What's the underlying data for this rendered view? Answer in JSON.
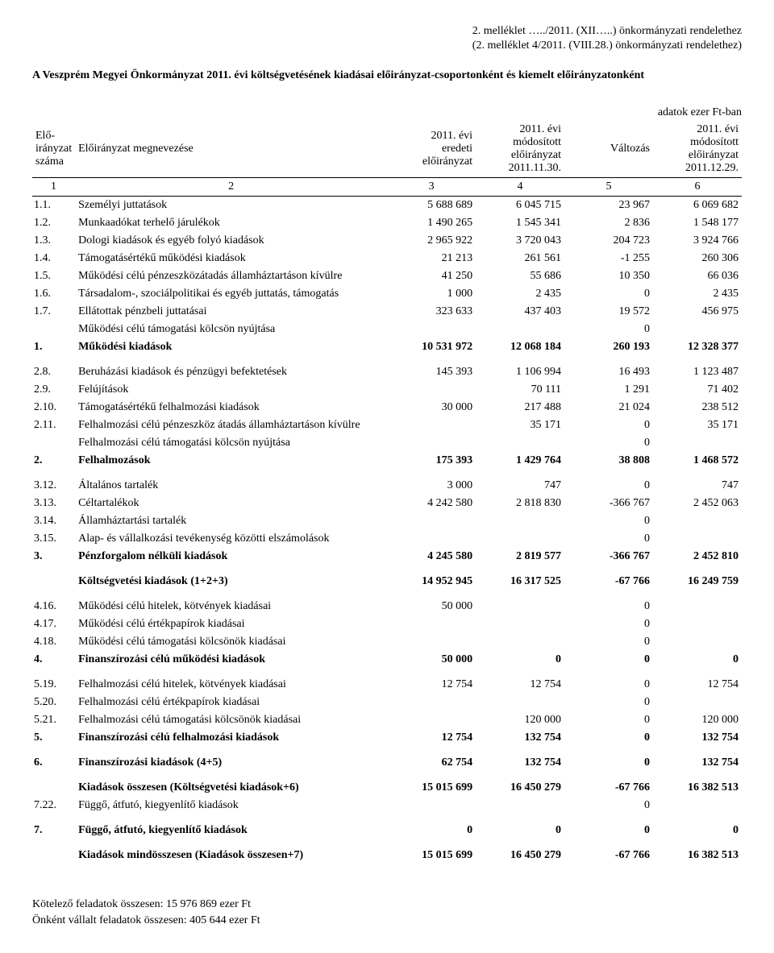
{
  "header": {
    "line1": "2. melléklet …../2011. (XII…..) önkormányzati rendelethez",
    "line2": "(2. melléklet 4/2011. (VIII.28.) önkormányzati rendelethez)"
  },
  "title": "A Veszprém Megyei Önkormányzat 2011. évi költségvetésének kiadásai előirányzat-csoportonként és kiemelt előirányzatonként",
  "unit": "adatok ezer Ft-ban",
  "columns": {
    "c1": "Elő-\nirányzat\nszáma",
    "c2": "Előirányzat megnevezése",
    "c3": "2011. évi\neredeti\nelőirányzat",
    "c4": "2011. évi\nmódosított\nelőirányzat\n2011.11.30.",
    "c5": "Változás",
    "c6": "2011. évi\nmódosított\nelőirányzat\n2011.12.29."
  },
  "colnums": {
    "c1": "1",
    "c2": "2",
    "c3": "3",
    "c4": "4",
    "c5": "5",
    "c6": "6"
  },
  "rows": [
    {
      "idx": "1.1.",
      "name": "Személyi juttatások",
      "v": [
        "5 688 689",
        "6 045 715",
        "23 967",
        "6 069 682"
      ]
    },
    {
      "idx": "1.2.",
      "name": "Munkaadókat terhelő járulékok",
      "v": [
        "1 490 265",
        "1 545 341",
        "2 836",
        "1 548 177"
      ]
    },
    {
      "idx": "1.3.",
      "name": "Dologi kiadások és egyéb folyó kiadások",
      "v": [
        "2 965 922",
        "3 720 043",
        "204 723",
        "3 924 766"
      ]
    },
    {
      "idx": "1.4.",
      "name": "Támogatásértékű működési kiadások",
      "v": [
        "21 213",
        "261 561",
        "-1 255",
        "260 306"
      ]
    },
    {
      "idx": "1.5.",
      "name": "Működési célú pénzeszközátadás államháztartáson kívülre",
      "v": [
        "41 250",
        "55 686",
        "10 350",
        "66 036"
      ]
    },
    {
      "idx": "1.6.",
      "name": "Társadalom-, szociálpolitikai és egyéb juttatás, támogatás",
      "v": [
        "1 000",
        "2 435",
        "0",
        "2 435"
      ]
    },
    {
      "idx": "1.7.",
      "name": "Ellátottak pénzbeli juttatásai",
      "v": [
        "323 633",
        "437 403",
        "19 572",
        "456 975"
      ]
    },
    {
      "idx": "",
      "name": "Működési célú támogatási kölcsön nyújtása",
      "v": [
        "",
        "",
        "0",
        ""
      ]
    },
    {
      "idx": "1.",
      "name": "Működési kiadások",
      "v": [
        "10 531 972",
        "12 068 184",
        "260 193",
        "12 328 377"
      ],
      "bold": true
    },
    {
      "idx": "2.8.",
      "name": "Beruházási kiadások és pénzügyi befektetések",
      "v": [
        "145 393",
        "1 106 994",
        "16 493",
        "1 123 487"
      ],
      "gap": true
    },
    {
      "idx": "2.9.",
      "name": "Felújítások",
      "v": [
        "",
        "70 111",
        "1 291",
        "71 402"
      ]
    },
    {
      "idx": "2.10.",
      "name": "Támogatásértékű felhalmozási kiadások",
      "v": [
        "30 000",
        "217 488",
        "21 024",
        "238 512"
      ]
    },
    {
      "idx": "2.11.",
      "name": "Felhalmozási célú pénzeszköz átadás államháztartáson kívülre",
      "v": [
        "",
        "35 171",
        "0",
        "35 171"
      ]
    },
    {
      "idx": "",
      "name": "Felhalmozási célú támogatási kölcsön nyújtása",
      "v": [
        "",
        "",
        "0",
        ""
      ]
    },
    {
      "idx": "2.",
      "name": "Felhalmozások",
      "v": [
        "175 393",
        "1 429 764",
        "38 808",
        "1 468 572"
      ],
      "bold": true
    },
    {
      "idx": "3.12.",
      "name": "Általános tartalék",
      "v": [
        "3 000",
        "747",
        "0",
        "747"
      ],
      "gap": true
    },
    {
      "idx": "3.13.",
      "name": "Céltartalékok",
      "v": [
        "4 242 580",
        "2 818 830",
        "-366 767",
        "2 452 063"
      ]
    },
    {
      "idx": "3.14.",
      "name": "Államháztartási tartalék",
      "v": [
        "",
        "",
        "0",
        ""
      ]
    },
    {
      "idx": "3.15.",
      "name": "Alap- és vállalkozási tevékenység közötti elszámolások",
      "v": [
        "",
        "",
        "0",
        ""
      ]
    },
    {
      "idx": "3.",
      "name": "Pénzforgalom nélküli kiadások",
      "v": [
        "4 245 580",
        "2 819 577",
        "-366 767",
        "2 452 810"
      ],
      "bold": true
    },
    {
      "idx": "",
      "name": "Költségvetési kiadások (1+2+3)",
      "v": [
        "14 952 945",
        "16 317 525",
        "-67 766",
        "16 249 759"
      ],
      "bold": true,
      "gap": true
    },
    {
      "idx": "4.16.",
      "name": "Működési célú hitelek, kötvények kiadásai",
      "v": [
        "50 000",
        "",
        "0",
        ""
      ],
      "gap": true
    },
    {
      "idx": "4.17.",
      "name": "Működési célú értékpapírok kiadásai",
      "v": [
        "",
        "",
        "0",
        ""
      ]
    },
    {
      "idx": "4.18.",
      "name": "Működési célú támogatási kölcsönök kiadásai",
      "v": [
        "",
        "",
        "0",
        ""
      ]
    },
    {
      "idx": "4.",
      "name": "Finanszírozási célú működési kiadások",
      "v": [
        "50 000",
        "0",
        "0",
        "0"
      ],
      "bold": true
    },
    {
      "idx": "5.19.",
      "name": "Felhalmozási célú hitelek, kötvények kiadásai",
      "v": [
        "12 754",
        "12 754",
        "0",
        "12 754"
      ],
      "gap": true
    },
    {
      "idx": "5.20.",
      "name": "Felhalmozási célú értékpapírok kiadásai",
      "v": [
        "",
        "",
        "0",
        ""
      ]
    },
    {
      "idx": "5.21.",
      "name": "Felhalmozási célú támogatási kölcsönök kiadásai",
      "v": [
        "",
        "120 000",
        "0",
        "120 000"
      ]
    },
    {
      "idx": "5.",
      "name": "Finanszírozási célú felhalmozási kiadások",
      "v": [
        "12 754",
        "132 754",
        "0",
        "132 754"
      ],
      "bold": true
    },
    {
      "idx": "6.",
      "name": "Finanszírozási kiadások (4+5)",
      "v": [
        "62 754",
        "132 754",
        "0",
        "132 754"
      ],
      "bold": true,
      "gap": true
    },
    {
      "idx": "",
      "name": "Kiadások összesen (Költségvetési kiadások+6)",
      "v": [
        "15 015 699",
        "16 450 279",
        "-67 766",
        "16 382 513"
      ],
      "bold": true,
      "gap": true
    },
    {
      "idx": "7.22.",
      "name": "Függő, átfutó, kiegyenlítő kiadások",
      "v": [
        "",
        "",
        "0",
        ""
      ]
    },
    {
      "idx": "7.",
      "name": "Függő, átfutó, kiegyenlítő kiadások",
      "v": [
        "0",
        "0",
        "0",
        "0"
      ],
      "bold": true,
      "gap": true
    },
    {
      "idx": "",
      "name": "Kiadások mindösszesen (Kiadások összesen+7)",
      "v": [
        "15 015 699",
        "16 450 279",
        "-67 766",
        "16 382 513"
      ],
      "bold": true,
      "gap": true
    }
  ],
  "footer": {
    "line1": "Kötelező feladatok összesen: 15 976 869 ezer Ft",
    "line2": "Önként vállalt feladatok összesen:  405 644 ezer Ft"
  }
}
